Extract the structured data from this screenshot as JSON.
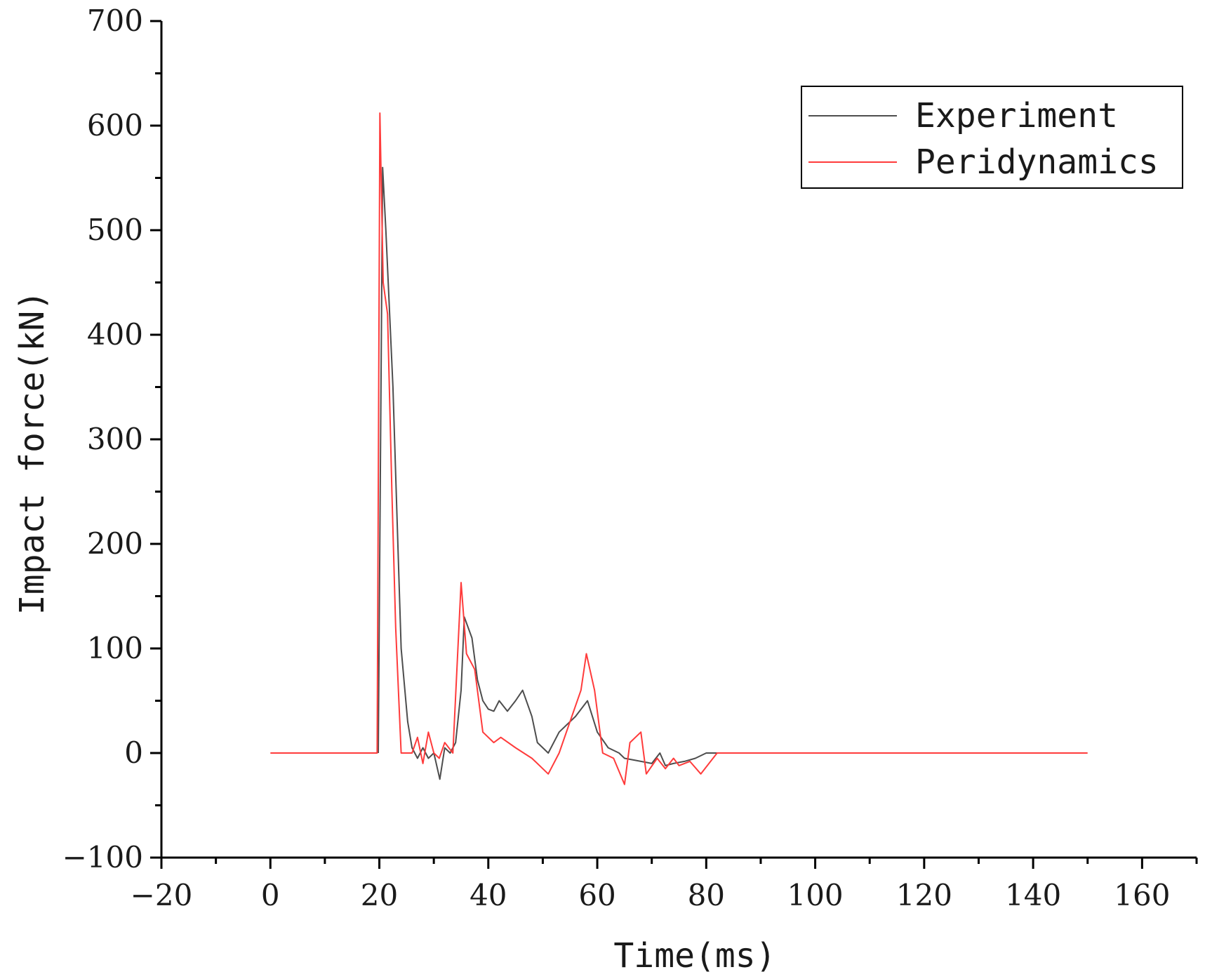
{
  "chart_data": {
    "type": "line",
    "title": "",
    "xlabel": "Time(ms)",
    "ylabel": "Impact force(kN)",
    "xlim": [
      -20,
      170
    ],
    "ylim": [
      -100,
      700
    ],
    "xticks": [
      -20,
      0,
      20,
      40,
      60,
      80,
      100,
      120,
      140,
      160
    ],
    "yticks": [
      -100,
      0,
      100,
      200,
      300,
      400,
      500,
      600,
      700
    ],
    "x_minor_step": 10,
    "y_minor_step": 50,
    "grid": false,
    "legend_position": "top-right",
    "series": [
      {
        "name": "Experiment",
        "color": "#4d4d4d",
        "points": [
          [
            19.8,
            0
          ],
          [
            20.6,
            560
          ],
          [
            21.2,
            500
          ],
          [
            22.5,
            350
          ],
          [
            23.4,
            200
          ],
          [
            24.0,
            100
          ],
          [
            25.2,
            30
          ],
          [
            26.0,
            5
          ],
          [
            27.0,
            -5
          ],
          [
            28.0,
            5
          ],
          [
            29.0,
            -5
          ],
          [
            30.0,
            0
          ],
          [
            31.1,
            -25
          ],
          [
            32.0,
            5
          ],
          [
            33.0,
            0
          ],
          [
            34.0,
            10
          ],
          [
            35.0,
            60
          ],
          [
            35.6,
            130
          ],
          [
            37.0,
            110
          ],
          [
            38.0,
            70
          ],
          [
            39.0,
            50
          ],
          [
            40.0,
            42
          ],
          [
            41.0,
            40
          ],
          [
            42.0,
            50
          ],
          [
            43.5,
            40
          ],
          [
            45.0,
            50
          ],
          [
            46.3,
            60
          ],
          [
            48.0,
            35
          ],
          [
            49.0,
            10
          ],
          [
            51.0,
            0
          ],
          [
            53.0,
            20
          ],
          [
            56.0,
            35
          ],
          [
            58.2,
            50
          ],
          [
            60.0,
            20
          ],
          [
            62.0,
            5
          ],
          [
            64.0,
            0
          ],
          [
            65.0,
            -5
          ],
          [
            68.0,
            -8
          ],
          [
            70.0,
            -10
          ],
          [
            71.5,
            0
          ],
          [
            72.5,
            -12
          ],
          [
            74.0,
            -10
          ],
          [
            76.0,
            -8
          ],
          [
            78.0,
            -5
          ],
          [
            80.0,
            0
          ],
          [
            82.0,
            0
          ]
        ]
      },
      {
        "name": "Peridynamics",
        "color": "#ff3b3b",
        "points": [
          [
            0,
            0
          ],
          [
            19.6,
            0
          ],
          [
            20.1,
            612
          ],
          [
            20.7,
            450
          ],
          [
            21.5,
            420
          ],
          [
            22.3,
            250
          ],
          [
            23.0,
            120
          ],
          [
            24.0,
            0
          ],
          [
            26.0,
            0
          ],
          [
            27.0,
            15
          ],
          [
            28.0,
            -10
          ],
          [
            29.0,
            20
          ],
          [
            30.0,
            0
          ],
          [
            31.0,
            -5
          ],
          [
            32.0,
            10
          ],
          [
            33.5,
            0
          ],
          [
            35.0,
            163
          ],
          [
            36.0,
            95
          ],
          [
            37.5,
            80
          ],
          [
            39.0,
            20
          ],
          [
            41.0,
            10
          ],
          [
            42.3,
            15
          ],
          [
            45.0,
            5
          ],
          [
            48.0,
            -5
          ],
          [
            51.0,
            -20
          ],
          [
            53.0,
            0
          ],
          [
            55.0,
            30
          ],
          [
            57.0,
            60
          ],
          [
            58.0,
            95
          ],
          [
            59.5,
            60
          ],
          [
            61.0,
            0
          ],
          [
            63.0,
            -5
          ],
          [
            65.0,
            -30
          ],
          [
            66.0,
            10
          ],
          [
            68.0,
            20
          ],
          [
            69.0,
            -20
          ],
          [
            71.0,
            -5
          ],
          [
            72.5,
            -15
          ],
          [
            74.0,
            -5
          ],
          [
            75.0,
            -12
          ],
          [
            77.0,
            -8
          ],
          [
            79.0,
            -20
          ],
          [
            82.0,
            0
          ],
          [
            150.0,
            0
          ]
        ]
      }
    ]
  }
}
